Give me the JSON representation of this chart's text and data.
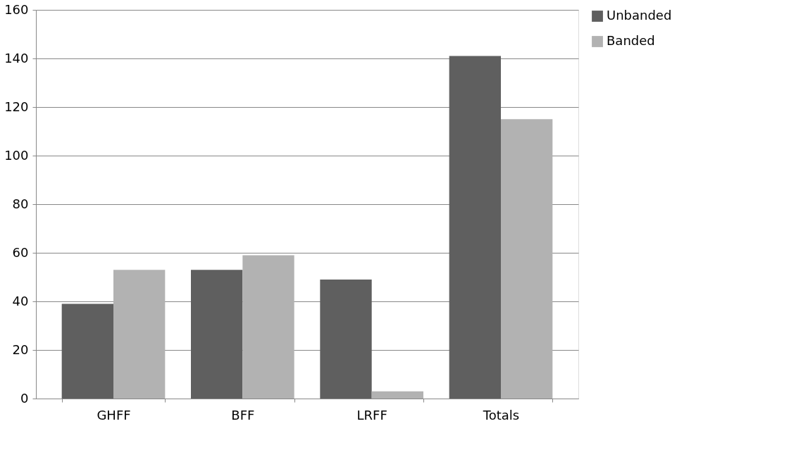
{
  "chart_data": {
    "type": "bar",
    "categories": [
      "GHFF",
      "BFF",
      "LRFF",
      "Totals"
    ],
    "series": [
      {
        "name": "Unbanded",
        "color": "#5f5f5f",
        "values": [
          39,
          53,
          49,
          141
        ]
      },
      {
        "name": "Banded",
        "color": "#b2b2b2",
        "values": [
          53,
          59,
          3,
          115
        ]
      }
    ],
    "ylim": [
      0,
      160
    ],
    "yticks": [
      0,
      20,
      40,
      60,
      80,
      100,
      120,
      140,
      160
    ],
    "grid": "y",
    "legend": "right"
  }
}
